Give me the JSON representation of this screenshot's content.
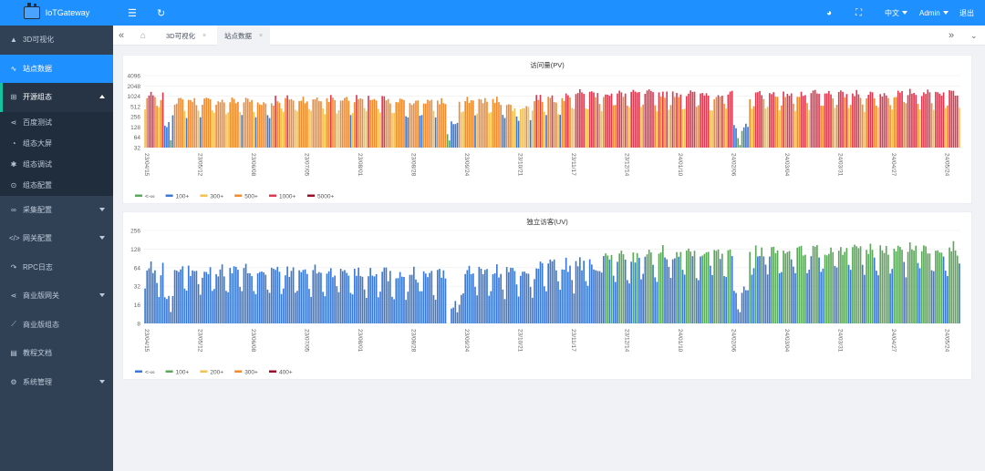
{
  "app": {
    "title": "IoTGateway"
  },
  "sidebar": {
    "items": [
      {
        "label": "3D可视化",
        "icon": "thumbs-up-icon"
      },
      {
        "label": "站点数据",
        "icon": "pulse-icon"
      },
      {
        "label": "开源组态",
        "icon": "cube-icon"
      },
      {
        "label": "采集配置",
        "icon": "link-icon"
      },
      {
        "label": "网关配置",
        "icon": "code-icon"
      },
      {
        "label": "RPC日志",
        "icon": "redo-icon"
      },
      {
        "label": "商业版网关",
        "icon": "share-icon"
      },
      {
        "label": "商业版组态",
        "icon": "chart-line-icon"
      },
      {
        "label": "教程文档",
        "icon": "document-icon"
      },
      {
        "label": "系统管理",
        "icon": "gear-icon"
      }
    ],
    "submenu": [
      {
        "label": "百度测试",
        "icon": "share-icon"
      },
      {
        "label": "组态大屏",
        "icon": "dashboard-icon"
      },
      {
        "label": "组态调试",
        "icon": "bug-icon"
      },
      {
        "label": "组态配置",
        "icon": "target-icon"
      }
    ]
  },
  "topbar": {
    "language": "中文",
    "user": "Admin",
    "logout": "退出"
  },
  "tags": [
    {
      "label": "3D可视化",
      "close": "×"
    },
    {
      "label": "站点数据",
      "close": "×"
    }
  ],
  "colors": {
    "primary": "#1e90ff",
    "sidebar": "#304156",
    "green": "#5ba85b",
    "blue": "#3a78d4",
    "yellow": "#f2c14e",
    "orange": "#f28a2e",
    "red": "#e0384f",
    "darkred": "#9b0d2a"
  },
  "chart_data": [
    {
      "type": "bar",
      "title": "访问量(PV)",
      "yscale": "log2",
      "ylim": [
        32,
        4096
      ],
      "yticks": [
        "32",
        "64",
        "128",
        "256",
        "512",
        "1024",
        "2048",
        "4096"
      ],
      "xticks": [
        "23/04/15",
        "23/05/12",
        "23/06/08",
        "23/07/05",
        "23/08/01",
        "23/08/28",
        "23/09/24",
        "23/10/21",
        "23/11/17",
        "23/12/14",
        "24/01/10",
        "24/02/06",
        "24/03/04",
        "24/03/31",
        "24/04/27",
        "24/05/24"
      ],
      "x_start": "23/04/15",
      "x_tick_interval_days": 27,
      "legend": [
        {
          "label": "<-∞",
          "color": "#5ba85b",
          "min": 0
        },
        {
          "label": "100+",
          "color": "#3a78d4",
          "min": 100
        },
        {
          "label": "300+",
          "color": "#f2c14e",
          "min": 300
        },
        {
          "label": "500+",
          "color": "#f28a2e",
          "min": 500
        },
        {
          "label": "1000+",
          "color": "#e0384f",
          "min": 1000
        },
        {
          "label": "5000+",
          "color": "#9b0d2a",
          "min": 5000
        }
      ],
      "legend_position": "bottom-left",
      "weekly_pattern": [
        1.0,
        1.05,
        1.1,
        1.0,
        0.95,
        0.45,
        0.4
      ],
      "base_values": [
        {
          "from": "23/04/15",
          "value": 1000
        },
        {
          "from": "23/04/25",
          "value": 150
        },
        {
          "from": "23/04/29",
          "value": 750
        },
        {
          "from": "23/06/10",
          "value": 650
        },
        {
          "from": "23/06/20",
          "value": 850
        },
        {
          "from": "23/08/15",
          "value": 700
        },
        {
          "from": "23/09/15",
          "value": 160
        },
        {
          "from": "23/09/21",
          "value": 750
        },
        {
          "from": "23/10/15",
          "value": 500
        },
        {
          "from": "23/10/28",
          "value": 900
        },
        {
          "from": "23/11/15",
          "value": 1200
        },
        {
          "from": "24/01/25",
          "value": 1100
        },
        {
          "from": "24/02/07",
          "value": 120
        },
        {
          "from": "24/02/15",
          "value": 1150
        },
        {
          "from": "24/05/01",
          "value": 1300
        }
      ]
    },
    {
      "type": "bar",
      "title": "独立访客(UV)",
      "yscale": "log2",
      "ylim": [
        8,
        256
      ],
      "yticks": [
        "8",
        "16",
        "32",
        "64",
        "128",
        "256"
      ],
      "xticks": [
        "23/04/15",
        "23/05/12",
        "23/06/08",
        "23/07/05",
        "23/08/01",
        "23/08/28",
        "23/09/24",
        "23/10/21",
        "23/11/17",
        "23/12/14",
        "24/01/10",
        "24/02/06",
        "24/03/04",
        "24/03/31",
        "24/04/27",
        "24/05/24"
      ],
      "x_start": "23/04/15",
      "x_tick_interval_days": 27,
      "legend": [
        {
          "label": "<-∞",
          "color": "#3a78d4",
          "min": 0
        },
        {
          "label": "100+",
          "color": "#5ba85b",
          "min": 100
        },
        {
          "label": "200+",
          "color": "#f2c14e",
          "min": 200
        },
        {
          "label": "300+",
          "color": "#f28a2e",
          "min": 300
        },
        {
          "label": "400+",
          "color": "#9b0d2a",
          "min": 400
        }
      ],
      "legend_position": "bottom-left",
      "weekly_pattern": [
        1.0,
        1.05,
        1.08,
        1.0,
        0.95,
        0.5,
        0.45
      ],
      "base_values": [
        {
          "from": "23/04/15",
          "value": 60
        },
        {
          "from": "23/04/25",
          "value": 22
        },
        {
          "from": "23/04/29",
          "value": 58
        },
        {
          "from": "23/06/15",
          "value": 55
        },
        {
          "from": "23/08/15",
          "value": 50
        },
        {
          "from": "23/09/15",
          "value": 14
        },
        {
          "from": "23/09/22",
          "value": 55
        },
        {
          "from": "23/11/01",
          "value": 70
        },
        {
          "from": "23/12/01",
          "value": 95
        },
        {
          "from": "24/01/01",
          "value": 115
        },
        {
          "from": "24/02/07",
          "value": 30
        },
        {
          "from": "24/02/15",
          "value": 120
        },
        {
          "from": "24/05/01",
          "value": 130
        }
      ]
    }
  ],
  "series_days": 413
}
